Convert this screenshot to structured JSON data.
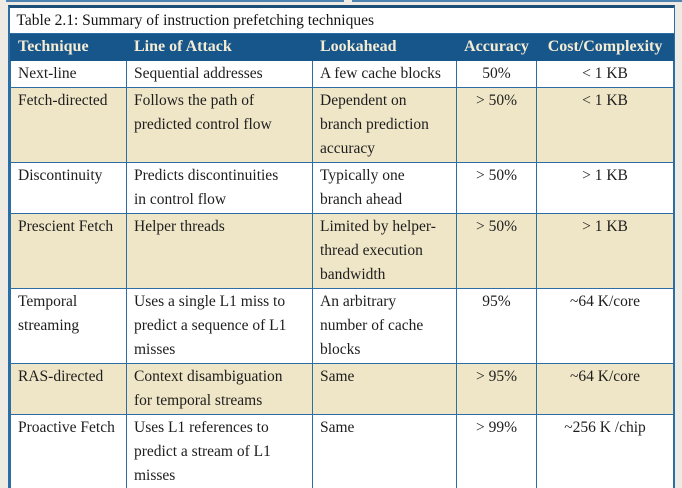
{
  "table": {
    "caption": "Table 2.1: Summary of instruction prefetching techniques",
    "columns": [
      "Technique",
      "Line of Attack",
      "Lookahead",
      "Accuracy",
      "Cost/Complexity"
    ],
    "row_fields": [
      "technique",
      "line_of_attack",
      "lookahead",
      "accuracy",
      "cost"
    ],
    "rows": [
      {
        "technique": "Next-line",
        "line_of_attack": "Sequential addresses",
        "lookahead": "A few cache blocks",
        "accuracy": "50%",
        "cost": "< 1 KB"
      },
      {
        "technique": "Fetch-directed",
        "line_of_attack": "Follows the path of\npredicted control flow",
        "lookahead": "Dependent on\nbranch prediction\naccuracy",
        "accuracy": "> 50%",
        "cost": "< 1 KB"
      },
      {
        "technique": "Discontinuity",
        "line_of_attack": "Predicts discontinuities\nin control flow",
        "lookahead": "Typically one\nbranch ahead",
        "accuracy": "> 50%",
        "cost": "> 1 KB"
      },
      {
        "technique": "Prescient Fetch",
        "line_of_attack": "Helper threads",
        "lookahead": "Limited by helper-\nthread execution\nbandwidth",
        "accuracy": "> 50%",
        "cost": "> 1 KB"
      },
      {
        "technique": "Temporal\nstreaming",
        "line_of_attack": "Uses a single L1 miss to\npredict a sequence of L1\nmisses",
        "lookahead": "An arbitrary\nnumber of cache\nblocks",
        "accuracy": "95%",
        "cost": "~64 K/core"
      },
      {
        "technique": "RAS-directed",
        "line_of_attack": "Context disambiguation\nfor temporal streams",
        "lookahead": "Same",
        "accuracy": "> 95%",
        "cost": "~64 K/core"
      },
      {
        "technique": "Proactive Fetch",
        "line_of_attack": "Uses L1 references to\npredict a stream of L1\nmisses",
        "lookahead": "Same",
        "accuracy": "> 99%",
        "cost": "~256 K /chip"
      }
    ],
    "colors": {
      "header_bg": "#17568a",
      "header_text": "#f5ecd4",
      "alt_row_bg": "#efe6c7",
      "grid_line": "#2e6da4",
      "dark_rule": "#1d4e77",
      "page_bg": "#edebe4"
    }
  }
}
